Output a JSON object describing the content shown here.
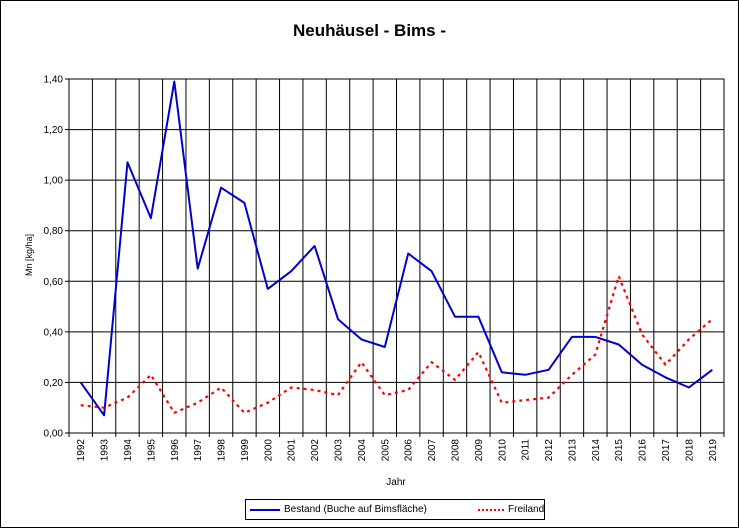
{
  "chart_data": {
    "type": "line",
    "title": "Neuhäusel - Bims -",
    "xlabel": "Jahr",
    "ylabel": "Mn [kg/ha]",
    "ylim": [
      0,
      1.4
    ],
    "yticks": [
      "0,00",
      "0,20",
      "0,40",
      "0,60",
      "0,80",
      "1,00",
      "1,20",
      "1,40"
    ],
    "grid": true,
    "legend_position": "bottom",
    "categories": [
      "1992",
      "1993",
      "1994",
      "1995",
      "1996",
      "1997",
      "1998",
      "1999",
      "2000",
      "2001",
      "2002",
      "2003",
      "2004",
      "2005",
      "2006",
      "2007",
      "2008",
      "2009",
      "2010",
      "2011",
      "2012",
      "2013",
      "2014",
      "2015",
      "2016",
      "2017",
      "2018",
      "2019"
    ],
    "series": [
      {
        "name": "Bestand (Buche auf Bimsfläche)",
        "color": "#0000cc",
        "style": "solid",
        "values": [
          0.2,
          0.07,
          1.07,
          0.85,
          1.39,
          0.65,
          0.97,
          0.91,
          0.57,
          0.64,
          0.74,
          0.45,
          0.37,
          0.34,
          0.71,
          0.64,
          0.46,
          0.46,
          0.24,
          0.23,
          0.25,
          0.38,
          0.38,
          0.35,
          0.27,
          0.22,
          0.18,
          0.25
        ]
      },
      {
        "name": "Freiland",
        "color": "#ff0000",
        "style": "dotted",
        "values": [
          0.11,
          0.1,
          0.14,
          0.23,
          0.08,
          0.12,
          0.18,
          0.08,
          0.12,
          0.18,
          0.17,
          0.15,
          0.28,
          0.15,
          0.17,
          0.28,
          0.21,
          0.32,
          0.12,
          0.13,
          0.14,
          0.23,
          0.31,
          0.62,
          0.39,
          0.27,
          0.37,
          0.45
        ]
      }
    ]
  }
}
